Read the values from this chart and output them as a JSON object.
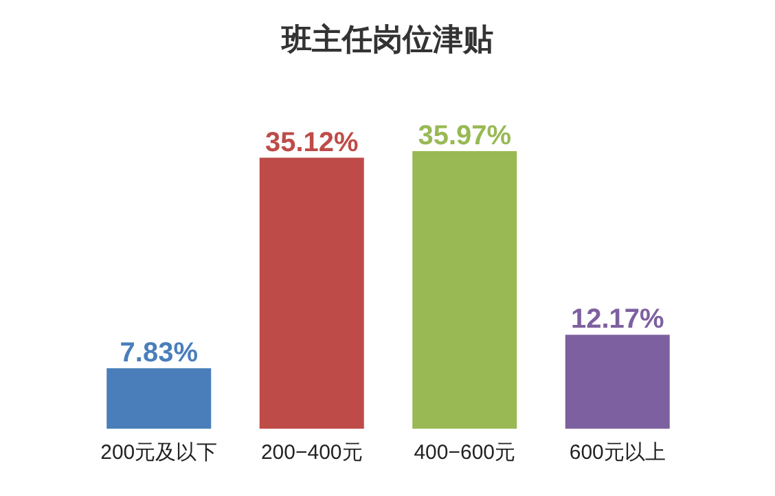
{
  "chart_data": {
    "type": "bar",
    "title": "班主任岗位津贴",
    "categories": [
      "200元及以下",
      "200−400元",
      "400−600元",
      "600元以上"
    ],
    "values": [
      7.83,
      35.12,
      35.97,
      12.17
    ],
    "colors": [
      "#4a7ebb",
      "#be4b48",
      "#98b954",
      "#7d60a0"
    ],
    "value_labels": [
      "7.83%",
      "35.12%",
      "35.97%",
      "12.17%"
    ]
  }
}
